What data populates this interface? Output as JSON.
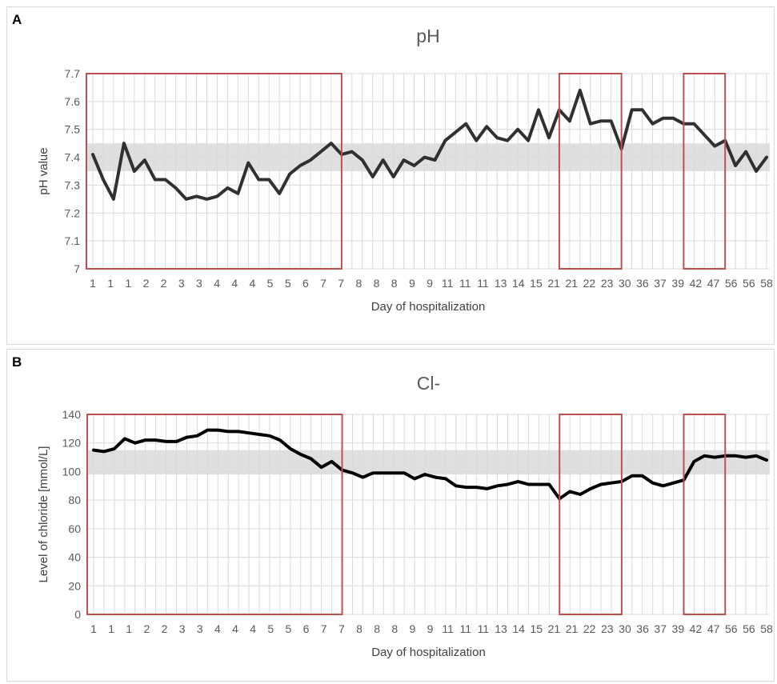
{
  "chart_data": [
    {
      "panel_label": "A",
      "type": "line",
      "title": "pH",
      "xlabel": "Day of hospitalization",
      "ylabel": "pH value",
      "ylim": [
        7,
        7.7
      ],
      "yticks": [
        "7",
        "7.1",
        "7.2",
        "7.3",
        "7.4",
        "7.5",
        "7.6",
        "7.7"
      ],
      "xticks": [
        "1",
        "1",
        "1",
        "2",
        "2",
        "3",
        "3",
        "4",
        "4",
        "4",
        "5",
        "5",
        "6",
        "7",
        "7",
        "8",
        "8",
        "8",
        "9",
        "9",
        "11",
        "11",
        "11",
        "13",
        "14",
        "15",
        "21",
        "21",
        "22",
        "23",
        "30",
        "36",
        "37",
        "39",
        "42",
        "47",
        "56",
        "56",
        "58"
      ],
      "normal_range": [
        7.35,
        7.45
      ],
      "highlight_colors": {
        "line": "#303030",
        "band": "#d9d9d9",
        "box": "#c0504d",
        "grid": "#d9d9d9"
      },
      "values": [
        7.41,
        7.32,
        7.25,
        7.45,
        7.35,
        7.39,
        7.32,
        7.32,
        7.29,
        7.25,
        7.26,
        7.25,
        7.26,
        7.29,
        7.27,
        7.38,
        7.32,
        7.32,
        7.27,
        7.34,
        7.37,
        7.39,
        7.42,
        7.45,
        7.41,
        7.42,
        7.39,
        7.33,
        7.39,
        7.33,
        7.39,
        7.37,
        7.4,
        7.39,
        7.46,
        7.49,
        7.52,
        7.46,
        7.51,
        7.47,
        7.46,
        7.5,
        7.46,
        7.57,
        7.47,
        7.57,
        7.53,
        7.64,
        7.52,
        7.53,
        7.53,
        7.43,
        7.57,
        7.57,
        7.52,
        7.54,
        7.54,
        7.52,
        7.52,
        7.48,
        7.44,
        7.46,
        7.37,
        7.42,
        7.35,
        7.4
      ],
      "boxes": [
        [
          0,
          24
        ],
        [
          45,
          51
        ],
        [
          57,
          61
        ]
      ]
    },
    {
      "panel_label": "B",
      "type": "line",
      "title": "Cl-",
      "xlabel": "Day of hospitalization",
      "ylabel": "Level of chloride [mmol/L]",
      "ylim": [
        0,
        140
      ],
      "yticks": [
        "0",
        "20",
        "40",
        "60",
        "80",
        "100",
        "120",
        "140"
      ],
      "xticks": [
        "1",
        "1",
        "1",
        "2",
        "2",
        "3",
        "3",
        "4",
        "4",
        "4",
        "5",
        "5",
        "6",
        "7",
        "7",
        "8",
        "8",
        "8",
        "9",
        "9",
        "11",
        "11",
        "11",
        "13",
        "14",
        "15",
        "21",
        "21",
        "22",
        "23",
        "30",
        "36",
        "37",
        "39",
        "42",
        "47",
        "56",
        "56",
        "58"
      ],
      "normal_range": [
        98,
        115
      ],
      "highlight_colors": {
        "line": "#000000",
        "band": "#d9d9d9",
        "box": "#c0504d",
        "grid": "#d9d9d9"
      },
      "values": [
        115,
        114,
        116,
        123,
        120,
        122,
        122,
        121,
        121,
        124,
        125,
        129,
        129,
        128,
        128,
        127,
        126,
        125,
        122,
        116,
        112,
        109,
        103,
        107,
        101,
        99,
        96,
        99,
        99,
        99,
        99,
        95,
        98,
        96,
        95,
        90,
        89,
        89,
        88,
        90,
        91,
        93,
        91,
        91,
        91,
        81,
        86,
        84,
        88,
        91,
        92,
        93,
        97,
        97,
        92,
        90,
        92,
        94,
        107,
        111,
        110,
        111,
        111,
        110,
        111,
        108
      ],
      "boxes": [
        [
          0,
          24
        ],
        [
          45,
          51
        ],
        [
          57,
          61
        ]
      ]
    }
  ]
}
